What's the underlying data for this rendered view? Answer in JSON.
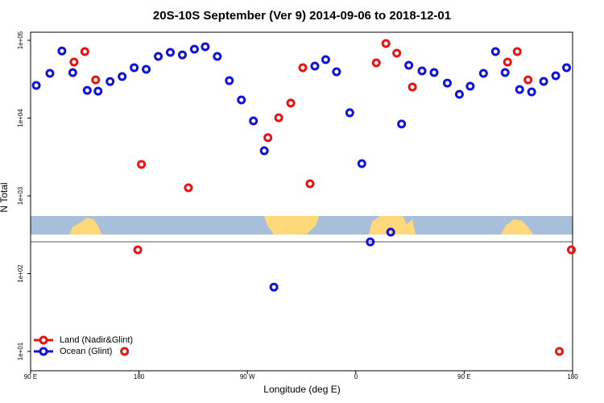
{
  "chart_data": {
    "type": "scatter",
    "title": "20S-10S September (Ver 9)   2014-09-06 to 2018-12-01",
    "xlabel": "Longitude (deg E)",
    "ylabel": "N Total",
    "log_y": true,
    "legend": "bottom-left",
    "xlim": [
      90,
      540
    ],
    "ylim": [
      5.64,
      127000
    ],
    "xticks": [
      {
        "value": 90,
        "label": "90 E"
      },
      {
        "value": 180,
        "label": "180"
      },
      {
        "value": 270,
        "label": "90 W"
      },
      {
        "value": 360,
        "label": "0"
      },
      {
        "value": 450,
        "label": "90 E"
      },
      {
        "value": 540,
        "label": "180"
      }
    ],
    "yticks": [
      {
        "value": 10,
        "label": "1e+01"
      },
      {
        "value": 100,
        "label": "1e+02"
      },
      {
        "value": 1000,
        "label": "1e+03"
      },
      {
        "value": 10000,
        "label": "1e+04"
      },
      {
        "value": 100000,
        "label": "1e+05"
      }
    ],
    "series": [
      {
        "name": "Land (Nadir&Glint)",
        "color": "#ee1111",
        "x": [
          126,
          135,
          144,
          168,
          179,
          182,
          221,
          287,
          296,
          306,
          316,
          322,
          377,
          385,
          394,
          407,
          486,
          494,
          503,
          529,
          539
        ],
        "values": [
          52500,
          71600,
          31000,
          10,
          202,
          2540,
          1270,
          5600,
          10100,
          15600,
          44500,
          1430,
          51300,
          91000,
          68300,
          25100,
          52500,
          71600,
          31000,
          10,
          202
        ]
      },
      {
        "name": "Ocean (Glint)",
        "color": "#1111dd",
        "x": [
          94.7,
          106,
          116,
          125,
          137,
          146,
          156,
          166,
          176,
          186,
          196,
          206,
          216,
          226,
          235,
          245,
          255,
          265,
          275,
          284,
          292,
          326,
          335,
          344,
          355,
          365,
          372,
          389,
          398,
          404,
          415,
          425,
          436,
          446,
          455,
          466,
          476,
          484,
          496,
          506,
          516,
          526,
          535
        ],
        "values": [
          26300,
          37600,
          73000,
          38400,
          22700,
          22200,
          29500,
          34200,
          44500,
          42400,
          62100,
          70000,
          65000,
          76900,
          82600,
          62100,
          30300,
          17100,
          9200,
          3800,
          67,
          46600,
          56400,
          39400,
          11700,
          2600,
          256,
          342,
          8400,
          47700,
          40400,
          38500,
          28200,
          20200,
          25700,
          37600,
          71600,
          38500,
          23300,
          21700,
          29600,
          35000,
          44500
        ]
      }
    ]
  }
}
